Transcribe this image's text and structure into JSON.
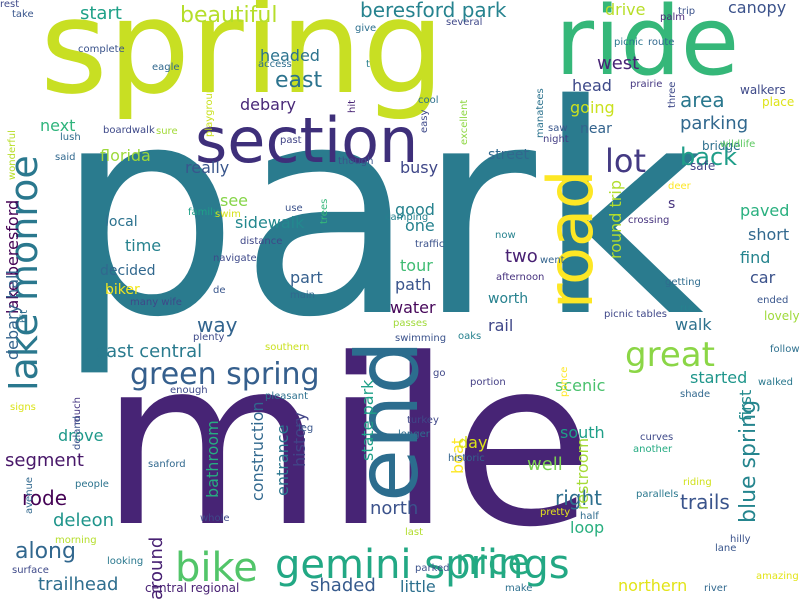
{
  "cloud": {
    "words": [
      {
        "text": "park",
        "color": "#2a7b8e",
        "rotated": false
      },
      {
        "text": "mile",
        "color": "#472475",
        "rotated": false
      },
      {
        "text": "spring",
        "color": "#c8df23",
        "rotated": false
      },
      {
        "text": "ride",
        "color": "#35b779",
        "rotated": false
      },
      {
        "text": "section",
        "color": "#3e2f7a",
        "rotated": false
      },
      {
        "text": "road",
        "color": "#fde725",
        "rotated": true
      },
      {
        "text": "end",
        "color": "#2c6d8e",
        "rotated": true
      },
      {
        "text": "lake monroe",
        "color": "#2a788e",
        "rotated": true
      },
      {
        "text": "gemini springs",
        "color": "#22a884",
        "rotated": false
      },
      {
        "text": "great",
        "color": "#8bd646",
        "rotated": false
      },
      {
        "text": "green spring",
        "color": "#355f8d",
        "rotated": false
      },
      {
        "text": "bike",
        "color": "#52c569",
        "rotated": false
      },
      {
        "text": "nice",
        "color": "#25aa81",
        "rotated": false
      },
      {
        "text": "beautiful",
        "color": "#b5de2b",
        "rotated": false
      },
      {
        "text": "beresford park",
        "color": "#26838f",
        "rotated": false
      },
      {
        "text": "blue spring",
        "color": "#25858e",
        "rotated": true
      },
      {
        "text": "lot",
        "color": "#443a83",
        "rotated": false
      },
      {
        "text": "back",
        "color": "#1f9e89",
        "rotated": false
      },
      {
        "text": "area",
        "color": "#2a788e",
        "rotated": false
      },
      {
        "text": "parking",
        "color": "#31688e",
        "rotated": false
      },
      {
        "text": "west",
        "color": "#482475",
        "rotated": false
      },
      {
        "text": "east",
        "color": "#2c738e",
        "rotated": false
      },
      {
        "text": "start",
        "color": "#1fa188",
        "rotated": false
      },
      {
        "text": "headed",
        "color": "#2c738e",
        "rotated": false
      },
      {
        "text": "drive",
        "color": "#b8de29",
        "rotated": false
      },
      {
        "text": "canopy",
        "color": "#3b528b",
        "rotated": false
      },
      {
        "text": "lake beresford",
        "color": "#440154",
        "rotated": true
      },
      {
        "text": "debary hall",
        "color": "#33638d",
        "rotated": true
      },
      {
        "text": "debary",
        "color": "#482878",
        "rotated": false
      },
      {
        "text": "next",
        "color": "#2fb47c",
        "rotated": false
      },
      {
        "text": "florida",
        "color": "#9dd93b",
        "rotated": false
      },
      {
        "text": "going",
        "color": "#cae11f",
        "rotated": false
      },
      {
        "text": "head",
        "color": "#3e4989",
        "rotated": false
      },
      {
        "text": "near",
        "color": "#33638d",
        "rotated": false
      },
      {
        "text": "street",
        "color": "#31688e",
        "rotated": false
      },
      {
        "text": "round trip",
        "color": "#b2dd2d",
        "rotated": true
      },
      {
        "text": "really",
        "color": "#39568c",
        "rotated": false
      },
      {
        "text": "busy",
        "color": "#3f4788",
        "rotated": false
      },
      {
        "text": "see",
        "color": "#86d549",
        "rotated": false
      },
      {
        "text": "good",
        "color": "#26828e",
        "rotated": false
      },
      {
        "text": "one",
        "color": "#26828e",
        "rotated": false
      },
      {
        "text": "sidewalk",
        "color": "#23888e",
        "rotated": false
      },
      {
        "text": "local",
        "color": "#2c728e",
        "rotated": false
      },
      {
        "text": "time",
        "color": "#26828e",
        "rotated": false
      },
      {
        "text": "two",
        "color": "#482173",
        "rotated": false
      },
      {
        "text": "tour",
        "color": "#3fbc73",
        "rotated": false
      },
      {
        "text": "decided",
        "color": "#31688e",
        "rotated": false
      },
      {
        "text": "part",
        "color": "#355f8d",
        "rotated": false
      },
      {
        "text": "path",
        "color": "#3a548c",
        "rotated": false
      },
      {
        "text": "biker",
        "color": "#f1e51d",
        "rotated": false
      },
      {
        "text": "water",
        "color": "#46075a",
        "rotated": false
      },
      {
        "text": "worth",
        "color": "#26818e",
        "rotated": false
      },
      {
        "text": "rail",
        "color": "#3f4788",
        "rotated": false
      },
      {
        "text": "walk",
        "color": "#2d718e",
        "rotated": false
      },
      {
        "text": "way",
        "color": "#32648e",
        "rotated": false
      },
      {
        "text": "east central",
        "color": "#2a7b8e",
        "rotated": false
      },
      {
        "text": "scenic",
        "color": "#4ac16d",
        "rotated": false
      },
      {
        "text": "started",
        "color": "#1f968b",
        "rotated": false
      },
      {
        "text": "first",
        "color": "#238a8d",
        "rotated": true
      },
      {
        "text": "s",
        "color": "#46337e",
        "rotated": false
      },
      {
        "text": "paved",
        "color": "#2ab07f",
        "rotated": false
      },
      {
        "text": "short",
        "color": "#31688e",
        "rotated": false
      },
      {
        "text": "find",
        "color": "#25848e",
        "rotated": false
      },
      {
        "text": "car",
        "color": "#3b528b",
        "rotated": false
      },
      {
        "text": "safe",
        "color": "#414487",
        "rotated": false
      },
      {
        "text": "bridge",
        "color": "#2d708e",
        "rotated": false
      },
      {
        "text": "drove",
        "color": "#1f998a",
        "rotated": false
      },
      {
        "text": "segment",
        "color": "#481769",
        "rotated": false
      },
      {
        "text": "rode",
        "color": "#440154",
        "rotated": false
      },
      {
        "text": "deleon",
        "color": "#1f958b",
        "rotated": false
      },
      {
        "text": "along",
        "color": "#31678e",
        "rotated": false
      },
      {
        "text": "trailhead",
        "color": "#2e6e8e",
        "rotated": false
      },
      {
        "text": "around",
        "color": "#482173",
        "rotated": true
      },
      {
        "text": "bathroom",
        "color": "#27ad81",
        "rotated": true
      },
      {
        "text": "construction",
        "color": "#31688e",
        "rotated": true
      },
      {
        "text": "entrance",
        "color": "#2a768e",
        "rotated": true
      },
      {
        "text": "history",
        "color": "#414487",
        "rotated": true
      },
      {
        "text": "state park",
        "color": "#1fa088",
        "rotated": true
      },
      {
        "text": "boat",
        "color": "#fde725",
        "rotated": true
      },
      {
        "text": "north",
        "color": "#3b528b",
        "rotated": false
      },
      {
        "text": "right",
        "color": "#2e6f8e",
        "rotated": false
      },
      {
        "text": "well",
        "color": "#7ad151",
        "rotated": false
      },
      {
        "text": "day",
        "color": "#dae319",
        "rotated": false
      },
      {
        "text": "south",
        "color": "#1f9f88",
        "rotated": false
      },
      {
        "text": "loop",
        "color": "#29af7f",
        "rotated": false
      },
      {
        "text": "trails",
        "color": "#3a548c",
        "rotated": false
      },
      {
        "text": "shaded",
        "color": "#375b8d",
        "rotated": false
      },
      {
        "text": "little",
        "color": "#2d708e",
        "rotated": false
      },
      {
        "text": "northern",
        "color": "#e2e418",
        "rotated": false
      },
      {
        "text": "central regional",
        "color": "#482173",
        "rotated": false
      },
      {
        "text": "restroom",
        "color": "#a5db36",
        "rotated": true
      },
      {
        "text": "take",
        "color": "#39568c",
        "rotated": false
      },
      {
        "text": "complete",
        "color": "#3a538b",
        "rotated": false
      },
      {
        "text": "eagle",
        "color": "#31688e",
        "rotated": false
      },
      {
        "text": "give",
        "color": "#2d708e",
        "rotated": false
      },
      {
        "text": "several",
        "color": "#3f4889",
        "rotated": false
      },
      {
        "text": "trip",
        "color": "#3b528b",
        "rotated": false
      },
      {
        "text": "palm",
        "color": "#482878",
        "rotated": false
      },
      {
        "text": "route",
        "color": "#31688e",
        "rotated": false
      },
      {
        "text": "picnic",
        "color": "#2a788e",
        "rotated": false
      },
      {
        "text": "three",
        "color": "#3e4989",
        "rotated": true
      },
      {
        "text": "prairie",
        "color": "#453781",
        "rotated": false
      },
      {
        "text": "walkers",
        "color": "#3e4a89",
        "rotated": false
      },
      {
        "text": "place",
        "color": "#dde318",
        "rotated": false
      },
      {
        "text": "playground",
        "color": "#cae11f",
        "rotated": true
      },
      {
        "text": "access",
        "color": "#2e6e8e",
        "rotated": false
      },
      {
        "text": "t",
        "color": "#287d8e",
        "rotated": false
      },
      {
        "text": "hit",
        "color": "#482475",
        "rotated": true
      },
      {
        "text": "easy",
        "color": "#3e4989",
        "rotated": true
      },
      {
        "text": "excellent",
        "color": "#8fd744",
        "rotated": true
      },
      {
        "text": "wonderful",
        "color": "#b8de29",
        "rotated": true
      },
      {
        "text": "manatees",
        "color": "#2c738e",
        "rotated": true
      },
      {
        "text": "cool",
        "color": "#2d708e",
        "rotated": false
      },
      {
        "text": "saw",
        "color": "#39568c",
        "rotated": false
      },
      {
        "text": "night",
        "color": "#433d84",
        "rotated": false
      },
      {
        "text": "lush",
        "color": "#2f6c8e",
        "rotated": false
      },
      {
        "text": "boardwalk",
        "color": "#3e4989",
        "rotated": false
      },
      {
        "text": "sure",
        "color": "#a2da37",
        "rotated": false
      },
      {
        "text": "past",
        "color": "#414487",
        "rotated": false
      },
      {
        "text": "said",
        "color": "#31688e",
        "rotated": false
      },
      {
        "text": "though",
        "color": "#3b528b",
        "rotated": false
      },
      {
        "text": "wildlife",
        "color": "#5ec962",
        "rotated": false
      },
      {
        "text": "deer",
        "color": "#fde725",
        "rotated": false
      },
      {
        "text": "family",
        "color": "#1fa088",
        "rotated": false
      },
      {
        "text": "swim",
        "color": "#d5e21a",
        "rotated": false
      },
      {
        "text": "camping",
        "color": "#26818e",
        "rotated": false
      },
      {
        "text": "crossing",
        "color": "#46337e",
        "rotated": false
      },
      {
        "text": "trees",
        "color": "#35b779",
        "rotated": true
      },
      {
        "text": "use",
        "color": "#3b528b",
        "rotated": false
      },
      {
        "text": "now",
        "color": "#26828e",
        "rotated": false
      },
      {
        "text": "went",
        "color": "#33638d",
        "rotated": false
      },
      {
        "text": "afternoon",
        "color": "#46327e",
        "rotated": false
      },
      {
        "text": "distance",
        "color": "#3f4788",
        "rotated": false
      },
      {
        "text": "traffic",
        "color": "#3b528b",
        "rotated": false
      },
      {
        "text": "navigate",
        "color": "#3e4989",
        "rotated": false
      },
      {
        "text": "getting",
        "color": "#2f6c8e",
        "rotated": false
      },
      {
        "text": "de",
        "color": "#39568c",
        "rotated": false
      },
      {
        "text": "main",
        "color": "#31688e",
        "rotated": false
      },
      {
        "text": "many wife",
        "color": "#3e4989",
        "rotated": false
      },
      {
        "text": "run",
        "color": "#26828e",
        "rotated": false
      },
      {
        "text": "ended",
        "color": "#39568c",
        "rotated": false
      },
      {
        "text": "lovely",
        "color": "#9fda3a",
        "rotated": false
      },
      {
        "text": "bit",
        "color": "#2e6e8e",
        "rotated": true
      },
      {
        "text": "plenty",
        "color": "#3e4a89",
        "rotated": false
      },
      {
        "text": "oaks",
        "color": "#26818e",
        "rotated": false
      },
      {
        "text": "picnic tables",
        "color": "#3f4788",
        "rotated": false
      },
      {
        "text": "passes",
        "color": "#a0da39",
        "rotated": false
      },
      {
        "text": "swimming",
        "color": "#3b528b",
        "rotated": false
      },
      {
        "text": "southern",
        "color": "#cae11f",
        "rotated": false
      },
      {
        "text": "follow",
        "color": "#2d708e",
        "rotated": false
      },
      {
        "text": "go",
        "color": "#3f4788",
        "rotated": false
      },
      {
        "text": "portion",
        "color": "#433e85",
        "rotated": false
      },
      {
        "text": "ponce",
        "color": "#fde725",
        "rotated": true
      },
      {
        "text": "walked",
        "color": "#2a788e",
        "rotated": false
      },
      {
        "text": "enough",
        "color": "#3e4989",
        "rotated": false
      },
      {
        "text": "pleasant",
        "color": "#2d708e",
        "rotated": false
      },
      {
        "text": "shade",
        "color": "#31688e",
        "rotated": false
      },
      {
        "text": "signs",
        "color": "#dae319",
        "rotated": false
      },
      {
        "text": "much",
        "color": "#453581",
        "rotated": true
      },
      {
        "text": "deland",
        "color": "#3b528b",
        "rotated": true
      },
      {
        "text": "leg",
        "color": "#39568c",
        "rotated": false
      },
      {
        "text": "turkey",
        "color": "#3f4788",
        "rotated": false
      },
      {
        "text": "longer",
        "color": "#2e6e8e",
        "rotated": false
      },
      {
        "text": "historic",
        "color": "#33638d",
        "rotated": false
      },
      {
        "text": "curves",
        "color": "#3e4989",
        "rotated": false
      },
      {
        "text": "another",
        "color": "#25ab82",
        "rotated": false
      },
      {
        "text": "sanford",
        "color": "#31688e",
        "rotated": false
      },
      {
        "text": "avenue",
        "color": "#31688e",
        "rotated": true
      },
      {
        "text": "people",
        "color": "#2c738e",
        "rotated": false
      },
      {
        "text": "riding",
        "color": "#d0e11c",
        "rotated": false
      },
      {
        "text": "parallels",
        "color": "#2a788e",
        "rotated": false
      },
      {
        "text": "pretty",
        "color": "#e5e419",
        "rotated": false
      },
      {
        "text": "half",
        "color": "#2f6c8e",
        "rotated": false
      },
      {
        "text": "whole",
        "color": "#3e4989",
        "rotated": false
      },
      {
        "text": "last",
        "color": "#b2dd2d",
        "rotated": false
      },
      {
        "text": "morning",
        "color": "#b5de2b",
        "rotated": false
      },
      {
        "text": "looking",
        "color": "#2a788e",
        "rotated": false
      },
      {
        "text": "hilly",
        "color": "#3b528b",
        "rotated": false
      },
      {
        "text": "lane",
        "color": "#39568c",
        "rotated": false
      },
      {
        "text": "surface",
        "color": "#3e4989",
        "rotated": false
      },
      {
        "text": "parked",
        "color": "#3b528b",
        "rotated": false
      },
      {
        "text": "make",
        "color": "#2d708e",
        "rotated": false
      },
      {
        "text": "river",
        "color": "#31688e",
        "rotated": false
      },
      {
        "text": "amazing",
        "color": "#e2e418",
        "rotated": false
      },
      {
        "text": "rest",
        "color": "#3e4989",
        "rotated": false
      }
    ]
  }
}
